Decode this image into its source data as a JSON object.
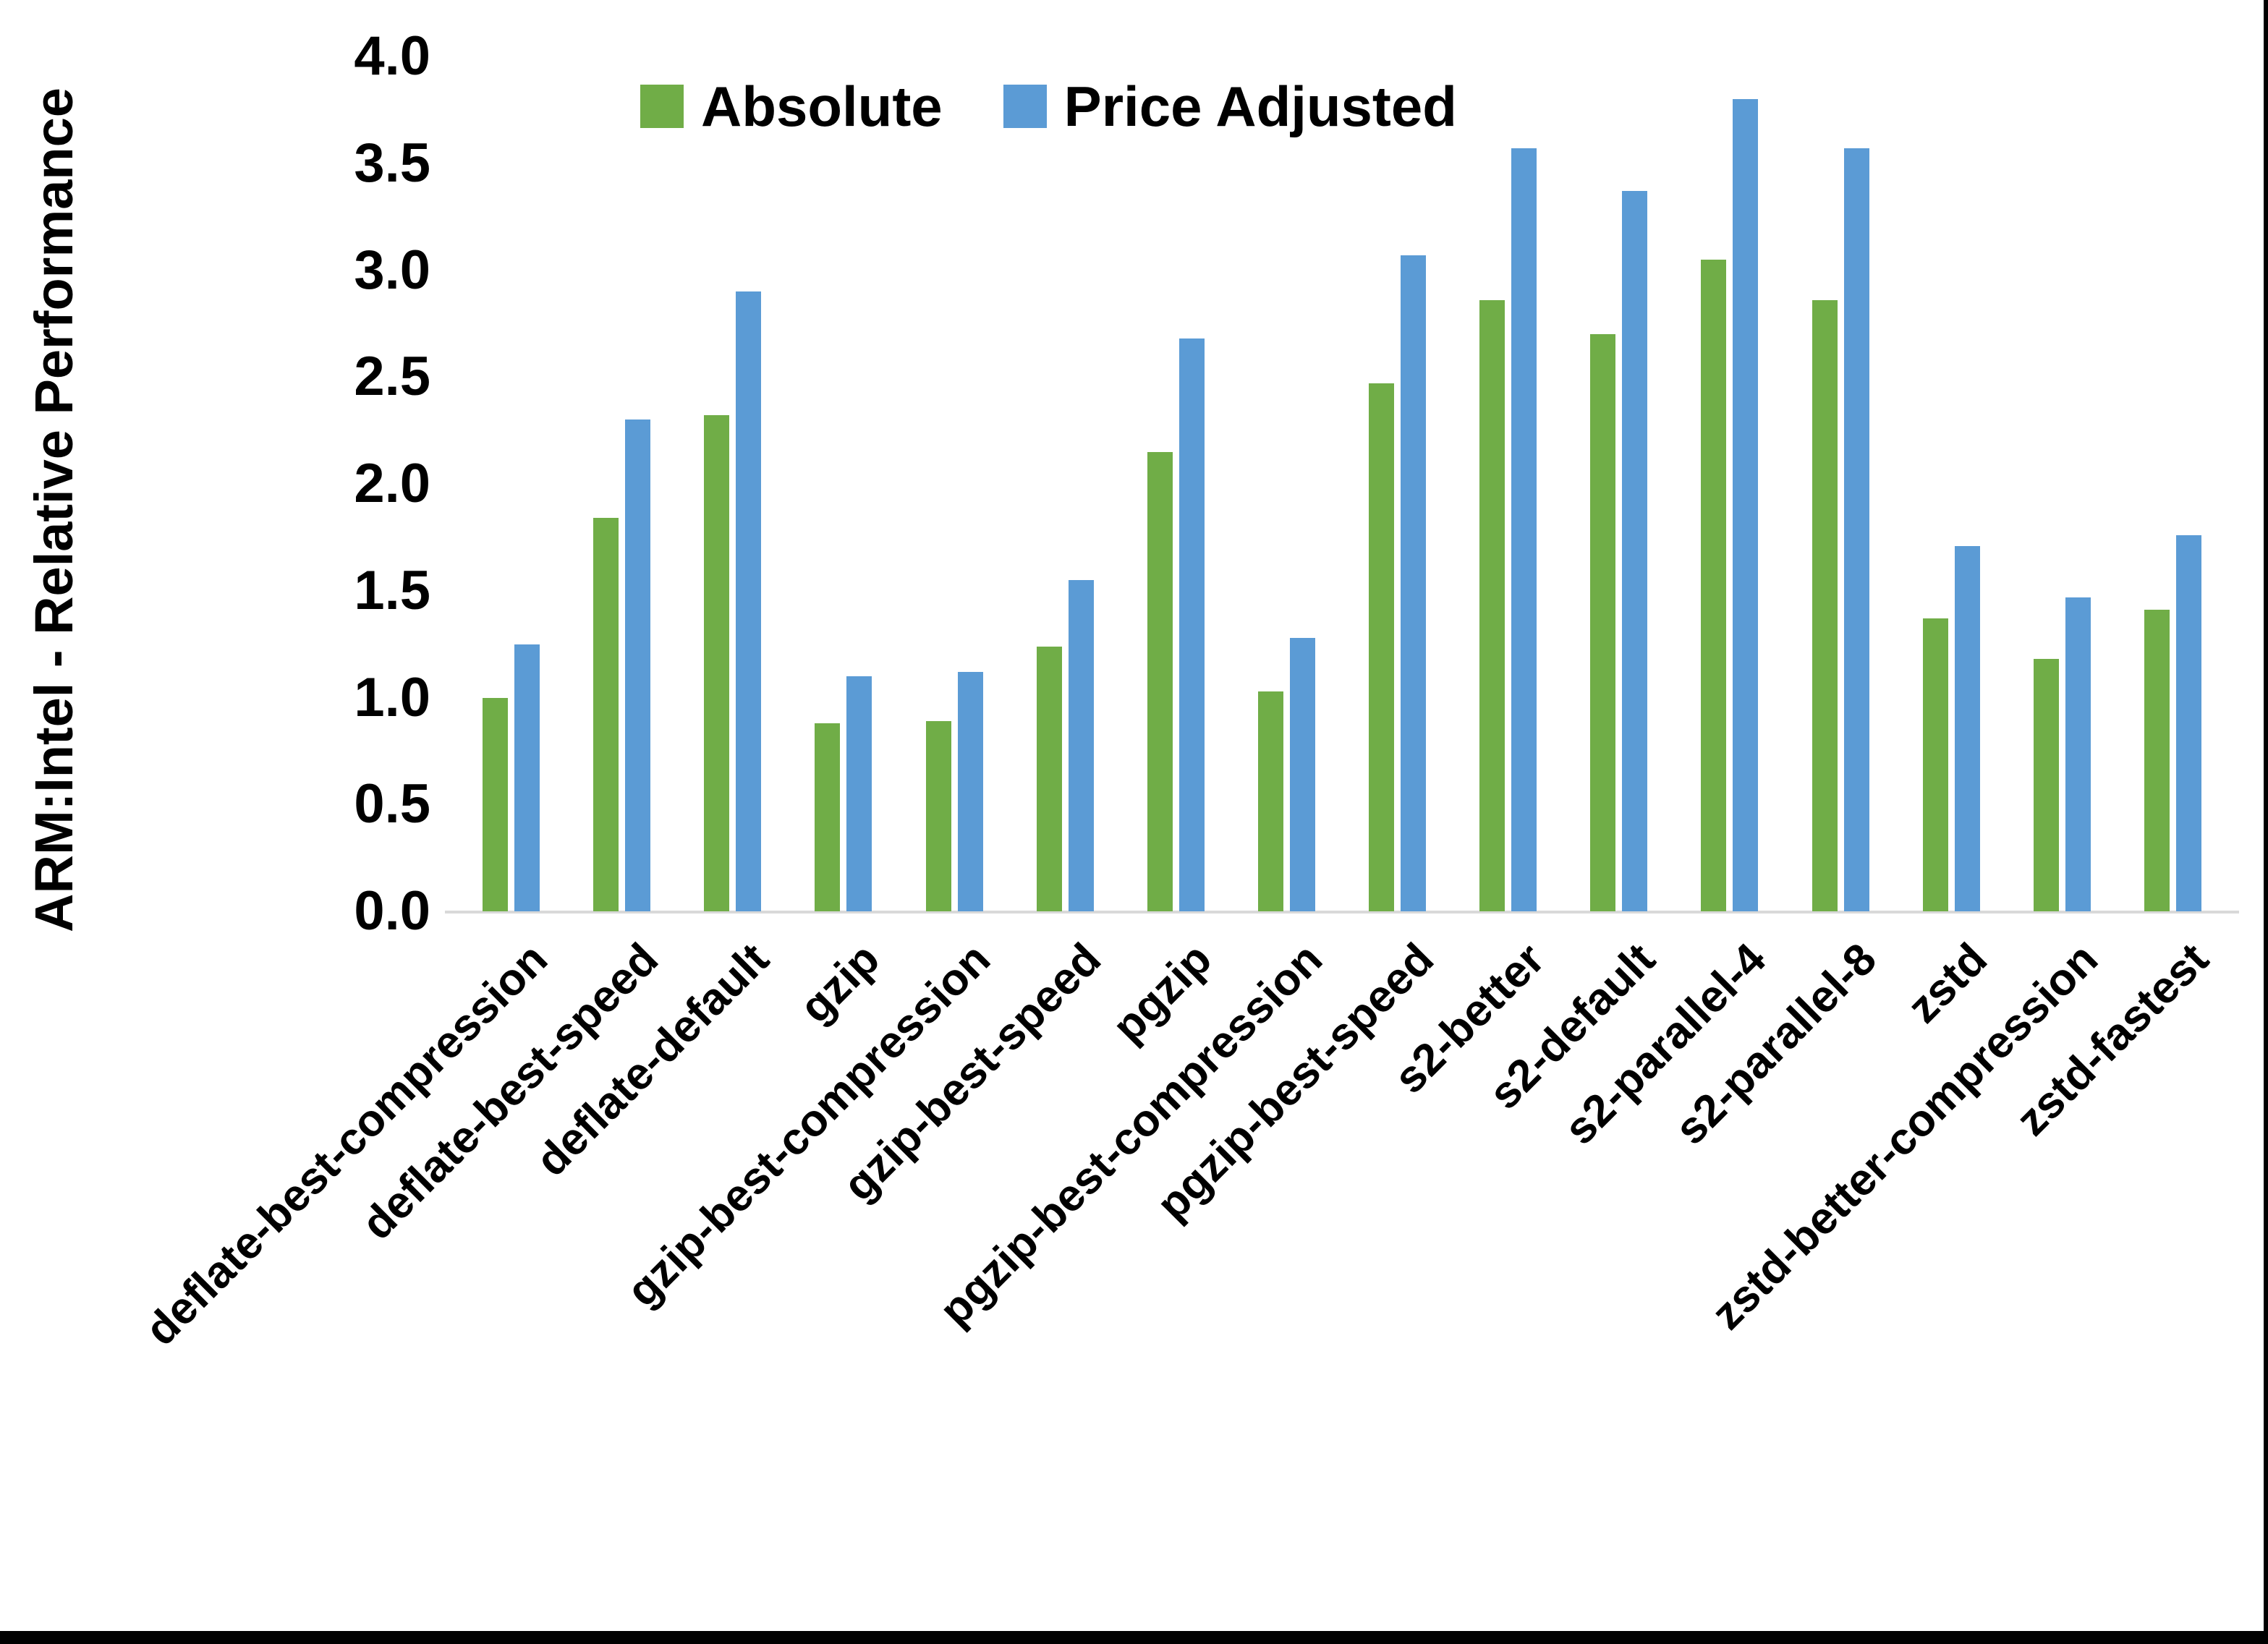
{
  "chart_data": {
    "type": "bar",
    "title": "",
    "ylabel": "ARM:Intel - Relative Performance",
    "xlabel": "",
    "ylim": [
      0.0,
      4.0
    ],
    "ytick_step": 0.5,
    "yticks": [
      "0.0",
      "0.5",
      "1.0",
      "1.5",
      "2.0",
      "2.5",
      "3.0",
      "3.5",
      "4.0"
    ],
    "grid": "off",
    "legend_position": "top-center",
    "categories": [
      "deflate-best-compression",
      "deflate-best-speed",
      "deflate-default",
      "gzip",
      "gzip-best-compression",
      "gzip-best-speed",
      "pgzip",
      "pgzip-best-compression",
      "pgzip-best-speed",
      "s2-better",
      "s2-default",
      "s2-parallel-4",
      "s2-parallel-8",
      "zstd",
      "zstd-better-compression",
      "zstd-fastest"
    ],
    "series": [
      {
        "name": "Absolute",
        "color": "#70AD47",
        "values": [
          1.0,
          1.84,
          2.32,
          0.88,
          0.89,
          1.24,
          2.15,
          1.03,
          2.47,
          2.86,
          2.7,
          3.05,
          2.86,
          1.37,
          1.18,
          1.41
        ]
      },
      {
        "name": "Price Adjusted",
        "color": "#5B9BD5",
        "values": [
          1.25,
          2.3,
          2.9,
          1.1,
          1.12,
          1.55,
          2.68,
          1.28,
          3.07,
          3.57,
          3.37,
          3.8,
          3.57,
          1.71,
          1.47,
          1.76
        ]
      }
    ],
    "colors": {
      "axis_line": "#D9D9D9",
      "text": "#000000",
      "background": "#FFFFFF",
      "screenshot_border": "#000000"
    }
  }
}
